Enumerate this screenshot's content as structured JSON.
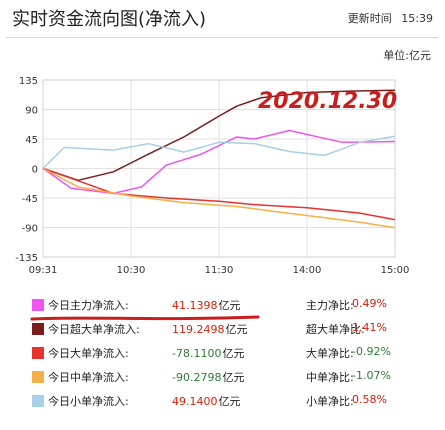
{
  "header": {
    "title": "实时资金流向图(净流入)",
    "updated_label": "更新时间",
    "updated_time": "15:39"
  },
  "unit_label": "单位:亿元",
  "annotation": "2020.12.30",
  "colors": {
    "main": "#ee55ee",
    "super": "#7a1c1c",
    "large": "#e8322c",
    "medium": "#f5b04a",
    "small": "#a8cfe8",
    "annotation": "#c81e1e",
    "positive": "#d81e06",
    "negative": "#2e7d32"
  },
  "legend": [
    {
      "key": "main",
      "label": "今日主力净流入:",
      "value": "41.1398",
      "unit": "亿元",
      "ratio_label": "主力净比:",
      "ratio": "0.49%"
    },
    {
      "key": "super",
      "label": "今日超大单净流入:",
      "value": "119.2498",
      "unit": "亿元",
      "ratio_label": "超大单净比:",
      "ratio": "1.41%"
    },
    {
      "key": "large",
      "label": "今日大单净流入:",
      "value": "-78.1100",
      "unit": "亿元",
      "ratio_label": "大单净比:",
      "ratio": "-0.92%"
    },
    {
      "key": "medium",
      "label": "今日中单净流入:",
      "value": "-90.2798",
      "unit": "亿元",
      "ratio_label": "中单净比:",
      "ratio": "-1.07%"
    },
    {
      "key": "small",
      "label": "今日小单净流入:",
      "value": "49.1400",
      "unit": "亿元",
      "ratio_label": "小单净比:",
      "ratio": "0.58%"
    }
  ],
  "chart_data": {
    "type": "line",
    "x_ticks": [
      "09:31",
      "10:30",
      "11:30",
      "14:00",
      "15:00"
    ],
    "y_ticks": [
      135,
      90,
      45,
      0,
      -45,
      -90,
      -135
    ],
    "ylim": [
      -135,
      135
    ],
    "grid": true,
    "series": [
      {
        "key": "super",
        "name": "今日超大单净流入",
        "x": [
          0,
          0.1,
          0.2,
          0.3,
          0.4,
          0.5,
          0.55,
          0.62,
          0.75,
          0.87,
          1.0
        ],
        "y": [
          0,
          -18,
          -5,
          22,
          48,
          80,
          95,
          108,
          116,
          118,
          119.25
        ]
      },
      {
        "key": "main",
        "name": "今日主力净流入",
        "x": [
          0,
          0.08,
          0.2,
          0.28,
          0.35,
          0.45,
          0.55,
          0.6,
          0.7,
          0.85,
          1.0
        ],
        "y": [
          0,
          -30,
          -38,
          -28,
          5,
          22,
          48,
          45,
          58,
          40,
          41.14
        ]
      },
      {
        "key": "small",
        "name": "今日小单净流入",
        "x": [
          0,
          0.06,
          0.2,
          0.3,
          0.4,
          0.5,
          0.6,
          0.7,
          0.8,
          0.9,
          1.0
        ],
        "y": [
          0,
          32,
          28,
          38,
          25,
          40,
          38,
          26,
          20,
          40,
          49.14
        ]
      },
      {
        "key": "large",
        "name": "今日大单净流入",
        "x": [
          0,
          0.08,
          0.2,
          0.35,
          0.5,
          0.6,
          0.75,
          0.9,
          1.0
        ],
        "y": [
          0,
          -15,
          -38,
          -45,
          -50,
          -55,
          -60,
          -68,
          -78.11
        ]
      },
      {
        "key": "medium",
        "name": "今日中单净流入",
        "x": [
          0,
          0.1,
          0.25,
          0.4,
          0.55,
          0.65,
          0.8,
          0.9,
          1.0
        ],
        "y": [
          0,
          -28,
          -42,
          -52,
          -58,
          -65,
          -75,
          -82,
          -90.28
        ]
      }
    ]
  }
}
